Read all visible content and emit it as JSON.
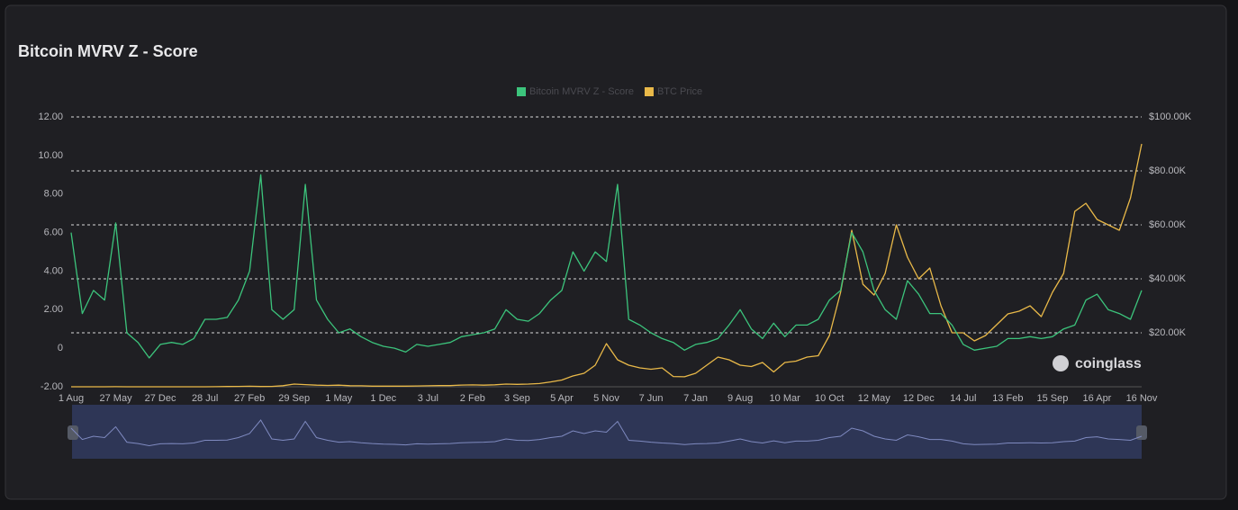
{
  "chart_data": {
    "type": "line",
    "title": "Bitcoin MVRV Z - Score",
    "watermark": "coinglass",
    "categories": [
      "1 Aug",
      null,
      null,
      null,
      "27 May",
      null,
      null,
      null,
      "27 Dec",
      null,
      null,
      null,
      "28 Jul",
      null,
      null,
      null,
      "27 Feb",
      null,
      null,
      null,
      "29 Sep",
      null,
      null,
      null,
      "1 May",
      null,
      null,
      null,
      "1 Dec",
      null,
      null,
      null,
      "3 Jul",
      null,
      null,
      null,
      "2 Feb",
      null,
      null,
      null,
      "3 Sep",
      null,
      null,
      null,
      "5 Apr",
      null,
      null,
      null,
      "5 Nov",
      null,
      null,
      null,
      "7 Jun",
      null,
      null,
      null,
      "7 Jan",
      null,
      null,
      null,
      "9 Aug",
      null,
      null,
      null,
      "10 Mar",
      null,
      null,
      null,
      "10 Oct",
      null,
      null,
      null,
      "12 May",
      null,
      null,
      null,
      "12 Dec",
      null,
      null,
      null,
      "14 Jul",
      null,
      null,
      null,
      "13 Feb",
      null,
      null,
      null,
      "15 Sep",
      null,
      null,
      null,
      "16 Apr",
      null,
      null,
      null,
      "16 Nov"
    ],
    "series": [
      {
        "name": "Bitcoin MVRV Z - Score",
        "color": "#3cc47c",
        "axis": "y",
        "values": [
          6.0,
          1.8,
          3.0,
          2.5,
          6.5,
          0.8,
          0.3,
          -0.5,
          0.2,
          0.3,
          0.2,
          0.5,
          1.5,
          1.5,
          1.6,
          2.5,
          4.0,
          9.0,
          2.0,
          1.5,
          2.0,
          8.5,
          2.5,
          1.5,
          0.8,
          1.0,
          0.6,
          0.3,
          0.1,
          0.0,
          -0.2,
          0.2,
          0.1,
          0.2,
          0.3,
          0.6,
          0.7,
          0.8,
          1.0,
          2.0,
          1.5,
          1.4,
          1.8,
          2.5,
          3.0,
          5.0,
          4.0,
          5.0,
          4.5,
          8.5,
          1.5,
          1.2,
          0.8,
          0.5,
          0.3,
          -0.1,
          0.2,
          0.3,
          0.5,
          1.2,
          2.0,
          1.0,
          0.5,
          1.3,
          0.6,
          1.2,
          1.2,
          1.5,
          2.5,
          3.0,
          6.0,
          5.0,
          3.0,
          2.0,
          1.5,
          3.5,
          2.8,
          1.8,
          1.8,
          1.2,
          0.2,
          -0.1,
          0.0,
          0.1,
          0.5,
          0.5,
          0.6,
          0.5,
          0.6,
          1.0,
          1.2,
          2.5,
          2.8,
          2.0,
          1.8,
          1.5,
          3.0
        ]
      },
      {
        "name": "BTC Price",
        "color": "#e9b949",
        "axis": "y2",
        "values": [
          0.06,
          0.3,
          0.9,
          4,
          18,
          8,
          3,
          3,
          5,
          7,
          10,
          12,
          14,
          30,
          100,
          130,
          200,
          100,
          120,
          400,
          1000,
          800,
          600,
          500,
          600,
          400,
          350,
          250,
          230,
          250,
          240,
          300,
          380,
          420,
          430,
          650,
          700,
          600,
          750,
          1000,
          900,
          1000,
          1200,
          1800,
          2500,
          4000,
          5000,
          8000,
          16000,
          10000,
          8000,
          7000,
          6500,
          7000,
          3800,
          3700,
          5000,
          8000,
          11000,
          10000,
          8000,
          7500,
          9000,
          5500,
          9000,
          9500,
          11000,
          11500,
          19000,
          35000,
          58000,
          38000,
          34000,
          42000,
          60000,
          48000,
          40000,
          44000,
          30000,
          20000,
          20000,
          17000,
          19000,
          23000,
          27000,
          28000,
          30000,
          26000,
          35000,
          42000,
          65000,
          68000,
          62000,
          60000,
          58000,
          70000,
          90000
        ]
      }
    ],
    "ylim": [
      -2,
      12
    ],
    "yticks": [
      {
        "value": -2,
        "label": "-2.00"
      },
      0,
      {
        "value": 2,
        "label": "2.00"
      },
      {
        "value": 4,
        "label": "4.00"
      },
      {
        "value": 6,
        "label": "6.00"
      },
      {
        "value": 8,
        "label": "8.00"
      },
      {
        "value": 10,
        "label": "10.00"
      },
      {
        "value": 12,
        "label": "12.00"
      }
    ],
    "y2lim": [
      0,
      100000
    ],
    "y2ticks": [
      {
        "value": 20000,
        "label": "$20.00K"
      },
      {
        "value": 40000,
        "label": "$40.00K"
      },
      {
        "value": 60000,
        "label": "$60.00K"
      },
      {
        "value": 80000,
        "label": "$80.00K"
      },
      {
        "value": 100000,
        "label": "$100.00K"
      }
    ],
    "grid": true
  }
}
